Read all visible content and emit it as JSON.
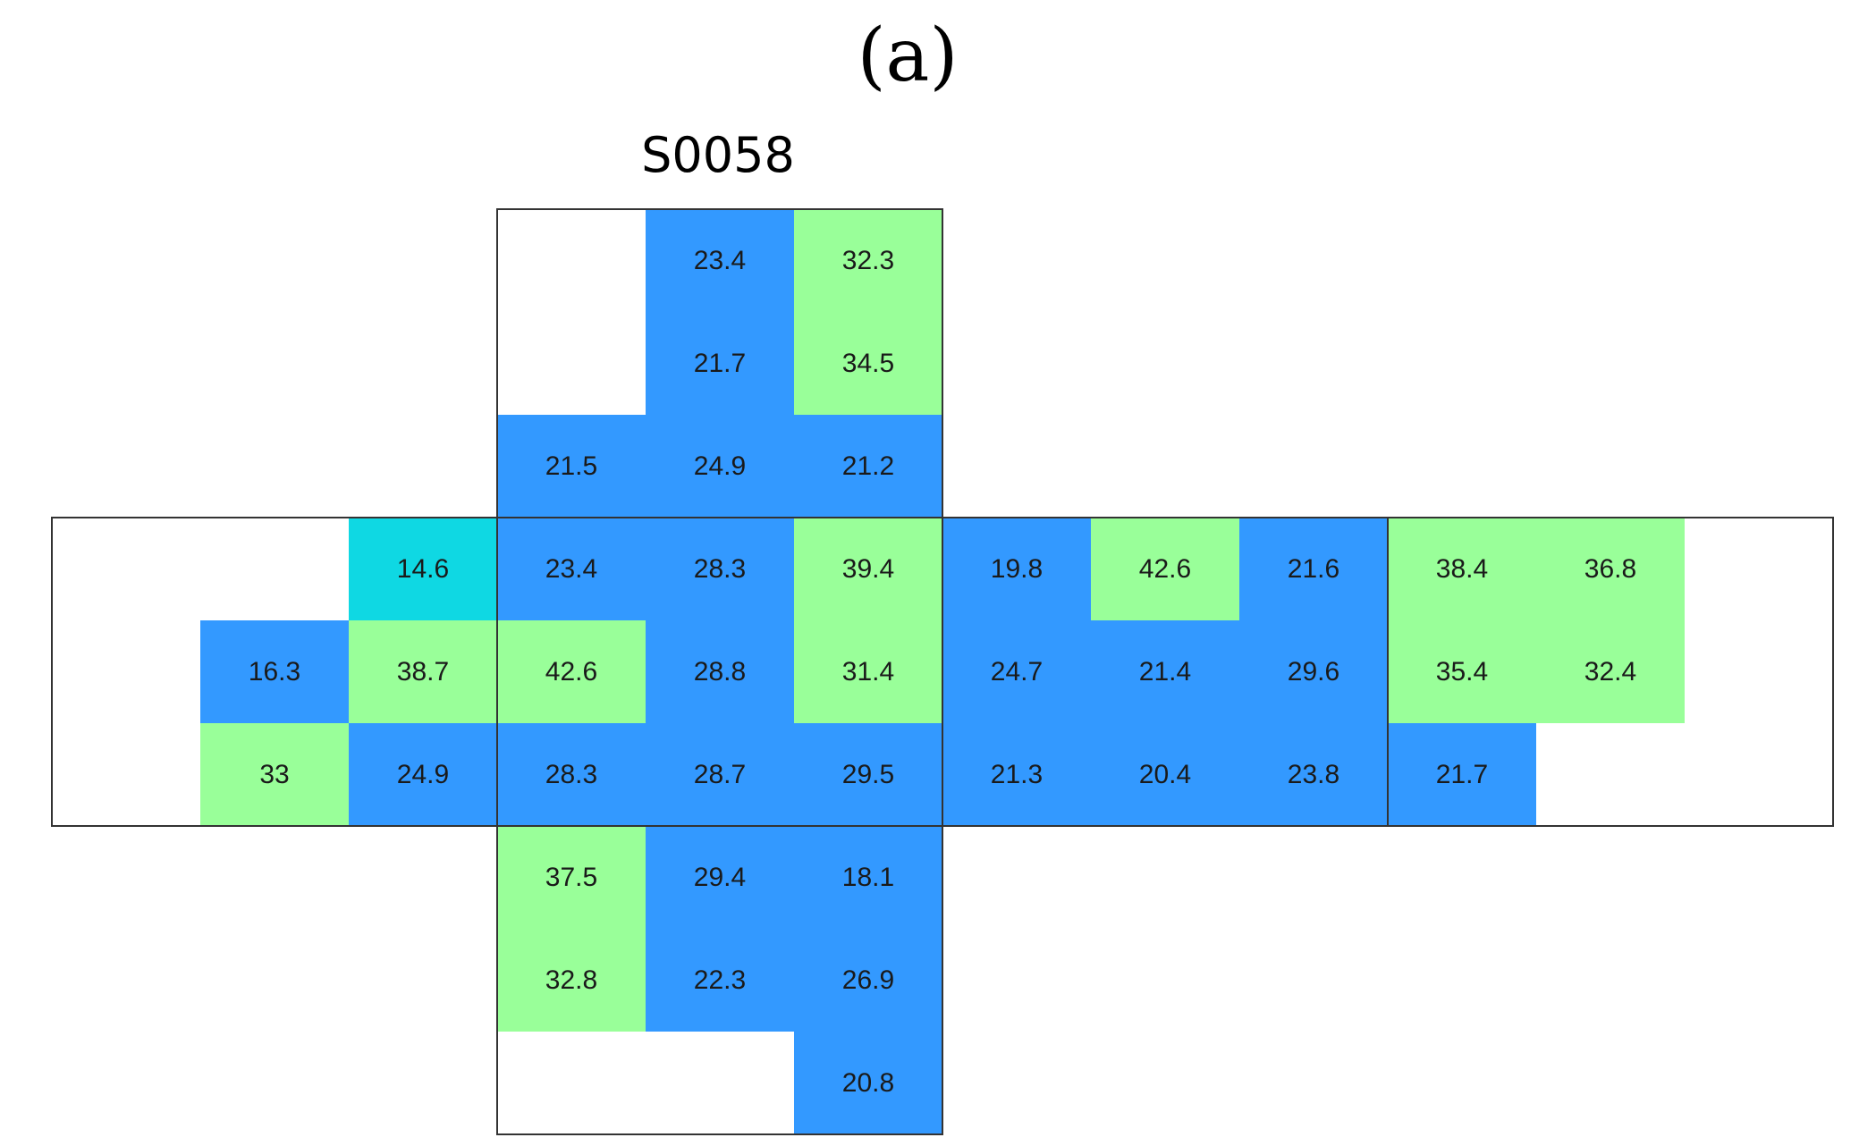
{
  "panel_label": "(a)",
  "colors": {
    "blue": "#3399ff",
    "green": "#99ff99",
    "cyan": "#0fd8e3",
    "outline": "#333333"
  },
  "chart_data": {
    "type": "heatmap",
    "title": "S0058",
    "rows": 9,
    "cols": 12,
    "cells": [
      {
        "row": 0,
        "col": 4,
        "value": "23.4",
        "color": "blue"
      },
      {
        "row": 0,
        "col": 5,
        "value": "32.3",
        "color": "green"
      },
      {
        "row": 1,
        "col": 4,
        "value": "21.7",
        "color": "blue"
      },
      {
        "row": 1,
        "col": 5,
        "value": "34.5",
        "color": "green"
      },
      {
        "row": 2,
        "col": 3,
        "value": "21.5",
        "color": "blue"
      },
      {
        "row": 2,
        "col": 4,
        "value": "24.9",
        "color": "blue"
      },
      {
        "row": 2,
        "col": 5,
        "value": "21.2",
        "color": "blue"
      },
      {
        "row": 3,
        "col": 2,
        "value": "14.6",
        "color": "cyan"
      },
      {
        "row": 3,
        "col": 3,
        "value": "23.4",
        "color": "blue"
      },
      {
        "row": 3,
        "col": 4,
        "value": "28.3",
        "color": "blue"
      },
      {
        "row": 3,
        "col": 5,
        "value": "39.4",
        "color": "green"
      },
      {
        "row": 3,
        "col": 6,
        "value": "19.8",
        "color": "blue"
      },
      {
        "row": 3,
        "col": 7,
        "value": "42.6",
        "color": "green"
      },
      {
        "row": 3,
        "col": 8,
        "value": "21.6",
        "color": "blue"
      },
      {
        "row": 3,
        "col": 9,
        "value": "38.4",
        "color": "green"
      },
      {
        "row": 3,
        "col": 10,
        "value": "36.8",
        "color": "green"
      },
      {
        "row": 4,
        "col": 1,
        "value": "16.3",
        "color": "blue"
      },
      {
        "row": 4,
        "col": 2,
        "value": "38.7",
        "color": "green"
      },
      {
        "row": 4,
        "col": 3,
        "value": "42.6",
        "color": "green"
      },
      {
        "row": 4,
        "col": 4,
        "value": "28.8",
        "color": "blue"
      },
      {
        "row": 4,
        "col": 5,
        "value": "31.4",
        "color": "green"
      },
      {
        "row": 4,
        "col": 6,
        "value": "24.7",
        "color": "blue"
      },
      {
        "row": 4,
        "col": 7,
        "value": "21.4",
        "color": "blue"
      },
      {
        "row": 4,
        "col": 8,
        "value": "29.6",
        "color": "blue"
      },
      {
        "row": 4,
        "col": 9,
        "value": "35.4",
        "color": "green"
      },
      {
        "row": 4,
        "col": 10,
        "value": "32.4",
        "color": "green"
      },
      {
        "row": 5,
        "col": 1,
        "value": "33",
        "color": "green"
      },
      {
        "row": 5,
        "col": 2,
        "value": "24.9",
        "color": "blue"
      },
      {
        "row": 5,
        "col": 3,
        "value": "28.3",
        "color": "blue"
      },
      {
        "row": 5,
        "col": 4,
        "value": "28.7",
        "color": "blue"
      },
      {
        "row": 5,
        "col": 5,
        "value": "29.5",
        "color": "blue"
      },
      {
        "row": 5,
        "col": 6,
        "value": "21.3",
        "color": "blue"
      },
      {
        "row": 5,
        "col": 7,
        "value": "20.4",
        "color": "blue"
      },
      {
        "row": 5,
        "col": 8,
        "value": "23.8",
        "color": "blue"
      },
      {
        "row": 5,
        "col": 9,
        "value": "21.7",
        "color": "blue"
      },
      {
        "row": 6,
        "col": 3,
        "value": "37.5",
        "color": "green"
      },
      {
        "row": 6,
        "col": 4,
        "value": "29.4",
        "color": "blue"
      },
      {
        "row": 6,
        "col": 5,
        "value": "18.1",
        "color": "blue"
      },
      {
        "row": 7,
        "col": 3,
        "value": "32.8",
        "color": "green"
      },
      {
        "row": 7,
        "col": 4,
        "value": "22.3",
        "color": "blue"
      },
      {
        "row": 7,
        "col": 5,
        "value": "26.9",
        "color": "blue"
      },
      {
        "row": 8,
        "col": 5,
        "value": "20.8",
        "color": "blue"
      }
    ],
    "faces": [
      {
        "name": "face-top",
        "row": 0,
        "col": 3,
        "rows": 3,
        "cols": 3
      },
      {
        "name": "face-left",
        "row": 3,
        "col": 0,
        "rows": 3,
        "cols": 3
      },
      {
        "name": "face-front",
        "row": 3,
        "col": 3,
        "rows": 3,
        "cols": 3
      },
      {
        "name": "face-right",
        "row": 3,
        "col": 6,
        "rows": 3,
        "cols": 3
      },
      {
        "name": "face-back",
        "row": 3,
        "col": 9,
        "rows": 3,
        "cols": 3
      },
      {
        "name": "face-bottom",
        "row": 6,
        "col": 3,
        "rows": 3,
        "cols": 3
      }
    ]
  }
}
